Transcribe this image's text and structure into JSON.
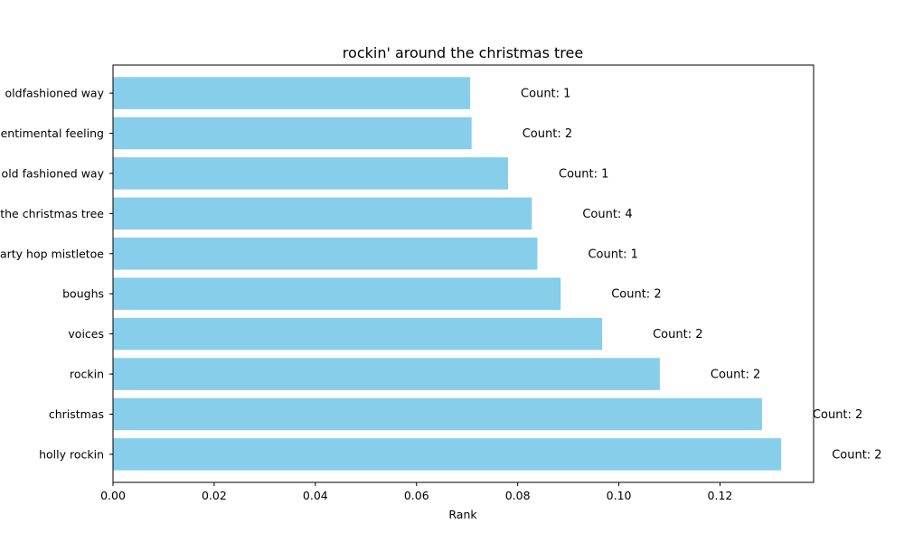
{
  "chart_data": {
    "type": "bar",
    "orientation": "horizontal",
    "title": "rockin' around the christmas tree",
    "xlabel": "Rank",
    "ylabel": "",
    "xlim": [
      0,
      0.1385
    ],
    "xticks": [
      "0.00",
      "0.02",
      "0.04",
      "0.06",
      "0.08",
      "0.10",
      "0.12"
    ],
    "grid": false,
    "bar_color": "#87CEEB",
    "categories": [
      "holly rockin",
      "christmas",
      "rockin",
      "voices",
      "boughs",
      "party hop mistletoe",
      "around the christmas tree",
      "old fashioned way",
      "sentimental feeling",
      "oldfashioned way"
    ],
    "values": [
      0.1321,
      0.1283,
      0.1081,
      0.0967,
      0.0885,
      0.0839,
      0.0828,
      0.0781,
      0.0709,
      0.0706
    ],
    "annotations": [
      "Count: 2",
      "Count: 2",
      "Count: 2",
      "Count: 2",
      "Count: 2",
      "Count: 1",
      "Count: 4",
      "Count: 1",
      "Count: 2",
      "Count: 1"
    ]
  }
}
